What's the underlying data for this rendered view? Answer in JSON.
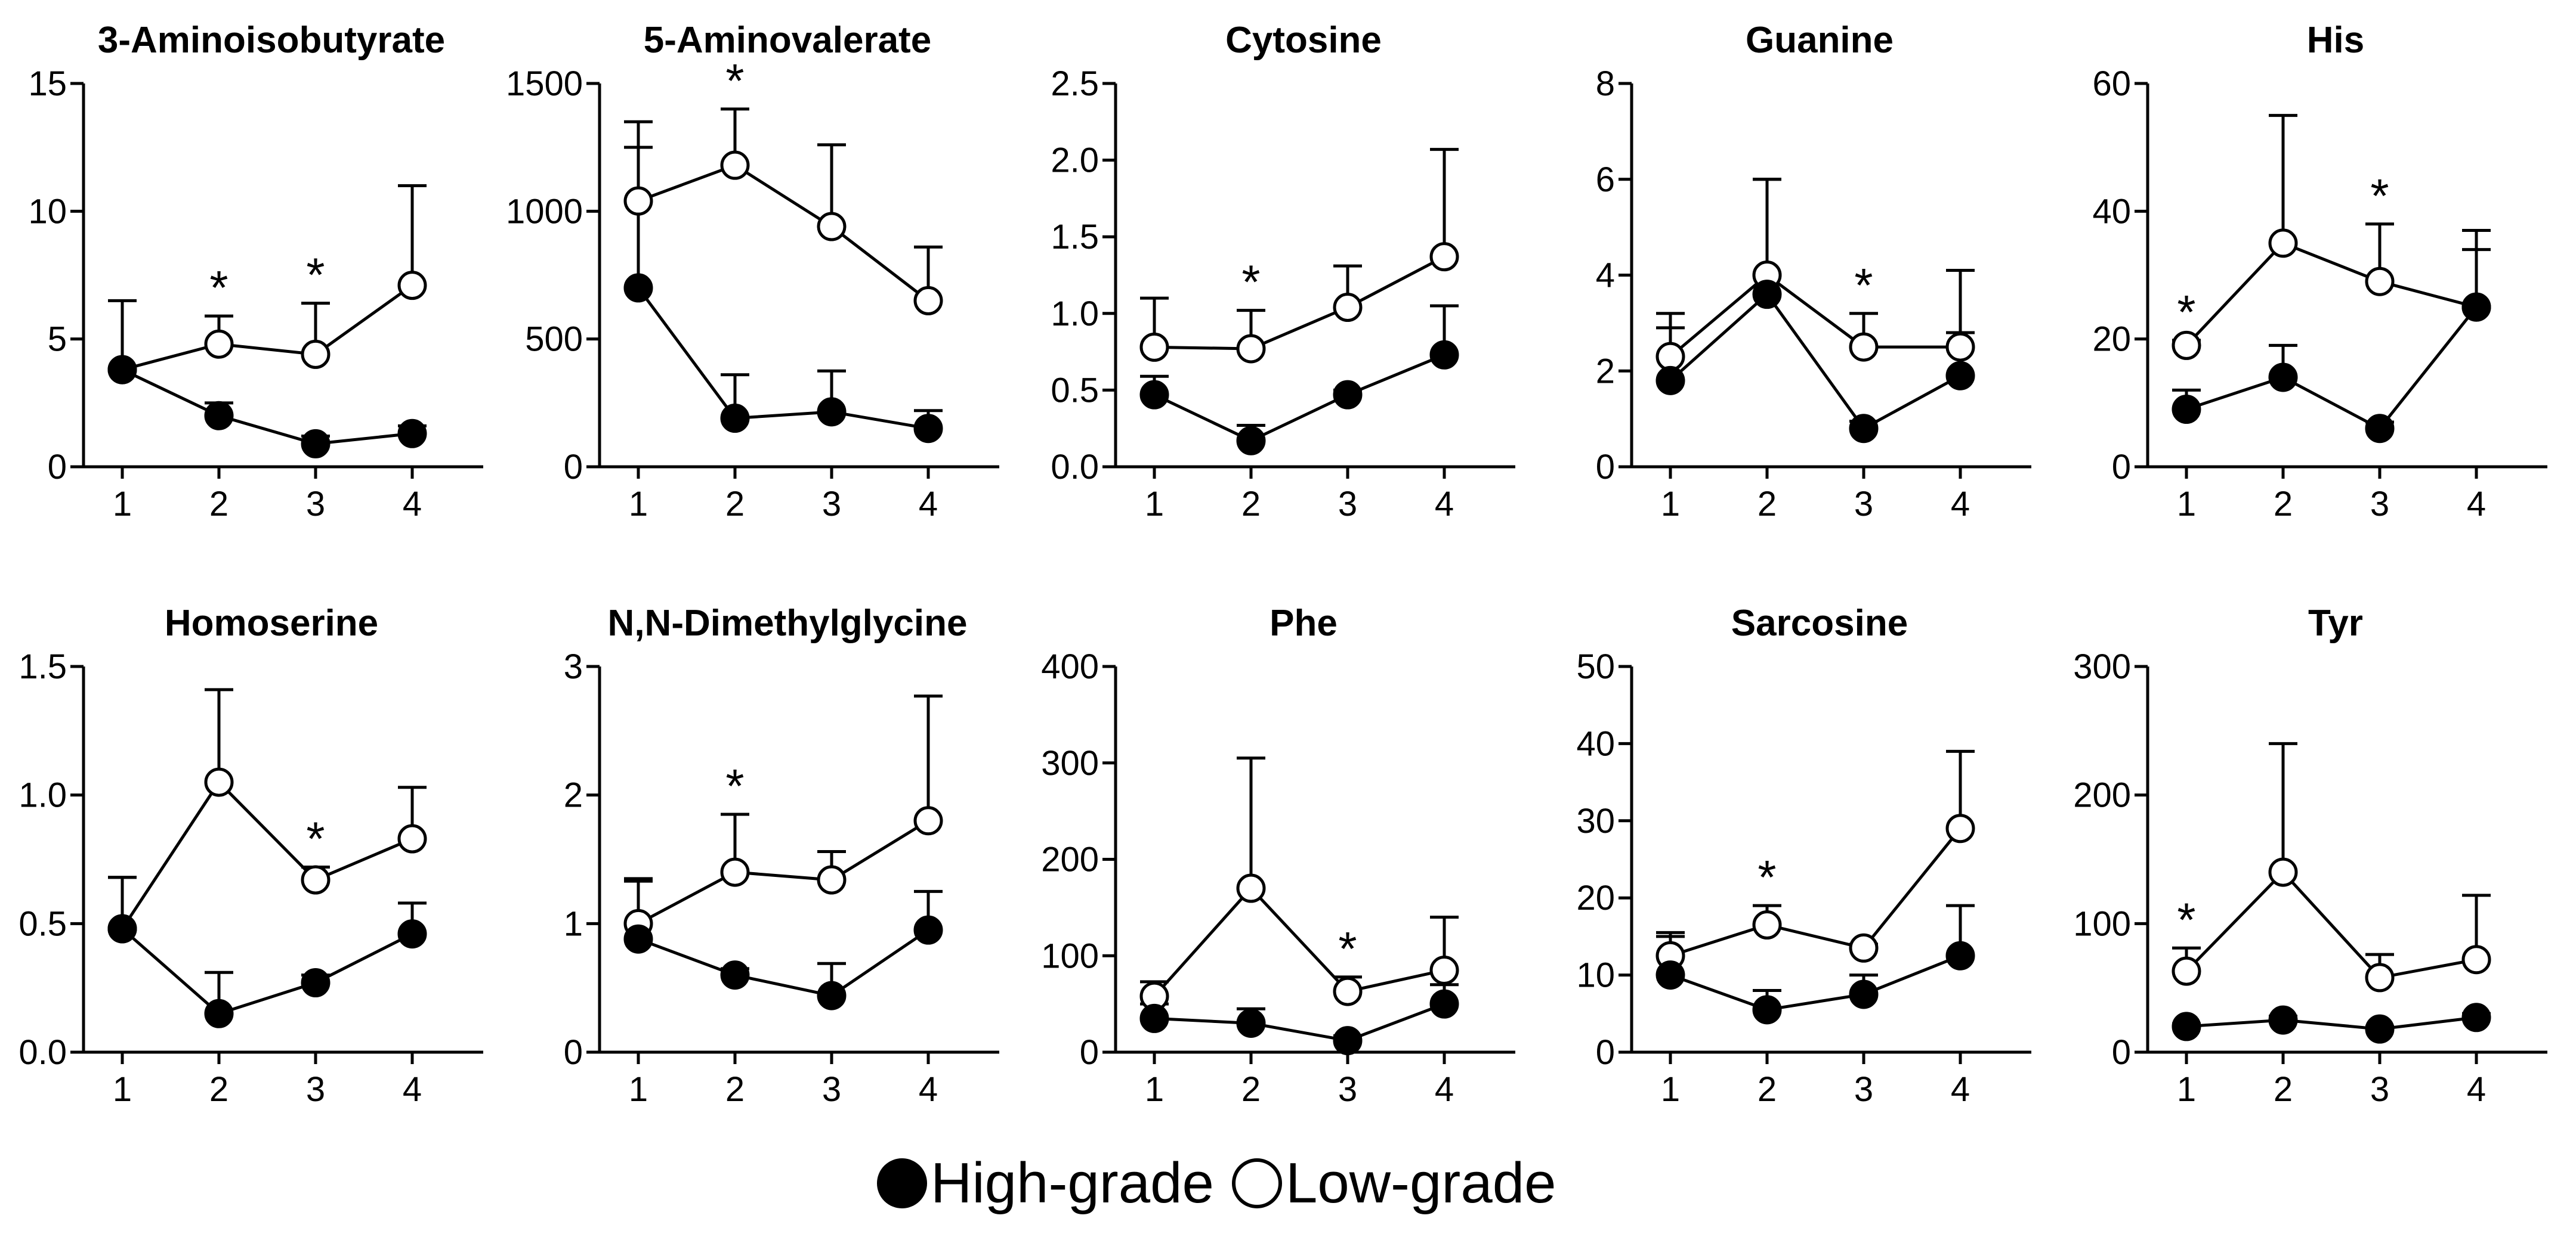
{
  "legend": {
    "high_label": "High-grade",
    "low_label": "Low-grade"
  },
  "colors": {
    "high": "#000000",
    "low": "#ffffff",
    "stroke": "#000000"
  },
  "chart_data": [
    {
      "type": "line",
      "title": "3-Aminoisobutyrate",
      "categories": [
        "1",
        "2",
        "3",
        "4"
      ],
      "ylim": [
        0,
        15
      ],
      "yticks": [
        "0",
        "5",
        "10",
        "15"
      ],
      "ytick_values": [
        0,
        5,
        10,
        15
      ],
      "series": [
        {
          "name": "High-grade",
          "values": [
            3.8,
            2.0,
            0.9,
            1.3
          ],
          "errors": [
            0,
            0.5,
            0.3,
            0.3
          ]
        },
        {
          "name": "Low-grade",
          "values": [
            3.8,
            4.8,
            4.4,
            7.1
          ],
          "errors": [
            2.7,
            1.1,
            2.0,
            3.9
          ]
        }
      ],
      "significant": [
        "2",
        "3"
      ]
    },
    {
      "type": "line",
      "title": "5-Aminovalerate",
      "categories": [
        "1",
        "2",
        "3",
        "4"
      ],
      "ylim": [
        0,
        1500
      ],
      "yticks": [
        "0",
        "500",
        "1000",
        "1500"
      ],
      "ytick_values": [
        0,
        500,
        1000,
        1500
      ],
      "series": [
        {
          "name": "High-grade",
          "values": [
            700,
            190,
            215,
            150
          ],
          "errors": [
            550,
            170,
            160,
            70
          ]
        },
        {
          "name": "Low-grade",
          "values": [
            1040,
            1180,
            940,
            650
          ],
          "errors": [
            310,
            220,
            320,
            210
          ]
        }
      ],
      "significant": [
        "2"
      ]
    },
    {
      "type": "line",
      "title": "Cytosine",
      "categories": [
        "1",
        "2",
        "3",
        "4"
      ],
      "ylim": [
        0,
        2.5
      ],
      "yticks": [
        "0.0",
        "0.5",
        "1.0",
        "1.5",
        "2.0",
        "2.5"
      ],
      "ytick_values": [
        0,
        0.5,
        1,
        1.5,
        2,
        2.5
      ],
      "series": [
        {
          "name": "High-grade",
          "values": [
            0.47,
            0.17,
            0.47,
            0.73
          ],
          "errors": [
            0.12,
            0.1,
            0.03,
            0.32
          ]
        },
        {
          "name": "Low-grade",
          "values": [
            0.78,
            0.77,
            1.04,
            1.37
          ],
          "errors": [
            0.32,
            0.25,
            0.27,
            0.7
          ]
        }
      ],
      "significant": [
        "2"
      ]
    },
    {
      "type": "line",
      "title": "Guanine",
      "categories": [
        "1",
        "2",
        "3",
        "4"
      ],
      "ylim": [
        0,
        8
      ],
      "yticks": [
        "0",
        "2",
        "4",
        "6",
        "8"
      ],
      "ytick_values": [
        0,
        2,
        4,
        6,
        8
      ],
      "series": [
        {
          "name": "High-grade",
          "values": [
            1.8,
            3.6,
            0.8,
            1.9
          ],
          "errors": [
            1.1,
            2.4,
            0.15,
            0.9
          ]
        },
        {
          "name": "Low-grade",
          "values": [
            2.3,
            4.0,
            2.5,
            2.5
          ],
          "errors": [
            0.9,
            2.0,
            0.7,
            1.6
          ]
        }
      ],
      "significant": [
        "3"
      ]
    },
    {
      "type": "line",
      "title": "His",
      "categories": [
        "1",
        "2",
        "3",
        "4"
      ],
      "ylim": [
        0,
        60
      ],
      "yticks": [
        "0",
        "20",
        "40",
        "60"
      ],
      "ytick_values": [
        0,
        20,
        40,
        60
      ],
      "series": [
        {
          "name": "High-grade",
          "values": [
            9,
            14,
            6,
            25
          ],
          "errors": [
            3,
            5,
            1,
            12
          ]
        },
        {
          "name": "Low-grade",
          "values": [
            19,
            35,
            29,
            25
          ],
          "errors": [
            0.8,
            20,
            9,
            9
          ]
        }
      ],
      "significant": [
        "1",
        "3"
      ]
    },
    {
      "type": "line",
      "title": "Homoserine",
      "categories": [
        "1",
        "2",
        "3",
        "4"
      ],
      "ylim": [
        0,
        1.5
      ],
      "yticks": [
        "0.0",
        "0.5",
        "1.0",
        "1.5"
      ],
      "ytick_values": [
        0,
        0.5,
        1,
        1.5
      ],
      "series": [
        {
          "name": "High-grade",
          "values": [
            0.48,
            0.15,
            0.27,
            0.46
          ],
          "errors": [
            0.2,
            0.16,
            0.03,
            0.12
          ]
        },
        {
          "name": "Low-grade",
          "values": [
            0.48,
            1.05,
            0.67,
            0.83
          ],
          "errors": [
            0.2,
            0.36,
            0.05,
            0.2
          ]
        }
      ],
      "significant": [
        "3"
      ]
    },
    {
      "type": "line",
      "title": "N,N-Dimethylglycine",
      "categories": [
        "1",
        "2",
        "3",
        "4"
      ],
      "ylim": [
        0,
        3
      ],
      "yticks": [
        "0",
        "1",
        "2",
        "3"
      ],
      "ytick_values": [
        0,
        1,
        2,
        3
      ],
      "series": [
        {
          "name": "High-grade",
          "values": [
            0.88,
            0.6,
            0.44,
            0.95
          ],
          "errors": [
            0.45,
            0.05,
            0.25,
            0.3
          ]
        },
        {
          "name": "Low-grade",
          "values": [
            1.0,
            1.4,
            1.34,
            1.8
          ],
          "errors": [
            0.35,
            0.45,
            0.22,
            0.97
          ]
        }
      ],
      "significant": [
        "2"
      ]
    },
    {
      "type": "line",
      "title": "Phe",
      "categories": [
        "1",
        "2",
        "3",
        "4"
      ],
      "ylim": [
        0,
        400
      ],
      "yticks": [
        "0",
        "100",
        "200",
        "300",
        "400"
      ],
      "ytick_values": [
        0,
        100,
        200,
        300,
        400
      ],
      "series": [
        {
          "name": "High-grade",
          "values": [
            35,
            30,
            12,
            50
          ],
          "errors": [
            15,
            15,
            5,
            20
          ]
        },
        {
          "name": "Low-grade",
          "values": [
            58,
            170,
            63,
            85
          ],
          "errors": [
            15,
            135,
            15,
            55
          ]
        }
      ],
      "significant": [
        "3"
      ]
    },
    {
      "type": "line",
      "title": "Sarcosine",
      "categories": [
        "1",
        "2",
        "3",
        "4"
      ],
      "ylim": [
        0,
        50
      ],
      "yticks": [
        "0",
        "10",
        "20",
        "30",
        "40",
        "50"
      ],
      "ytick_values": [
        0,
        10,
        20,
        30,
        40,
        50
      ],
      "series": [
        {
          "name": "High-grade",
          "values": [
            10,
            5.5,
            7.5,
            12.5
          ],
          "errors": [
            5.5,
            2.5,
            2.5,
            6.5
          ]
        },
        {
          "name": "Low-grade",
          "values": [
            12.5,
            16.5,
            13.5,
            29
          ],
          "errors": [
            2.5,
            2.5,
            0.5,
            10
          ]
        }
      ],
      "significant": [
        "2"
      ]
    },
    {
      "type": "line",
      "title": "Tyr",
      "categories": [
        "1",
        "2",
        "3",
        "4"
      ],
      "ylim": [
        0,
        300
      ],
      "yticks": [
        "0",
        "100",
        "200",
        "300"
      ],
      "ytick_values": [
        0,
        100,
        200,
        300
      ],
      "series": [
        {
          "name": "High-grade",
          "values": [
            20,
            25,
            18,
            27
          ],
          "errors": [
            2,
            3,
            2,
            3
          ]
        },
        {
          "name": "Low-grade",
          "values": [
            63,
            140,
            58,
            72
          ],
          "errors": [
            18,
            100,
            18,
            50
          ]
        }
      ],
      "significant": [
        "1"
      ]
    }
  ]
}
